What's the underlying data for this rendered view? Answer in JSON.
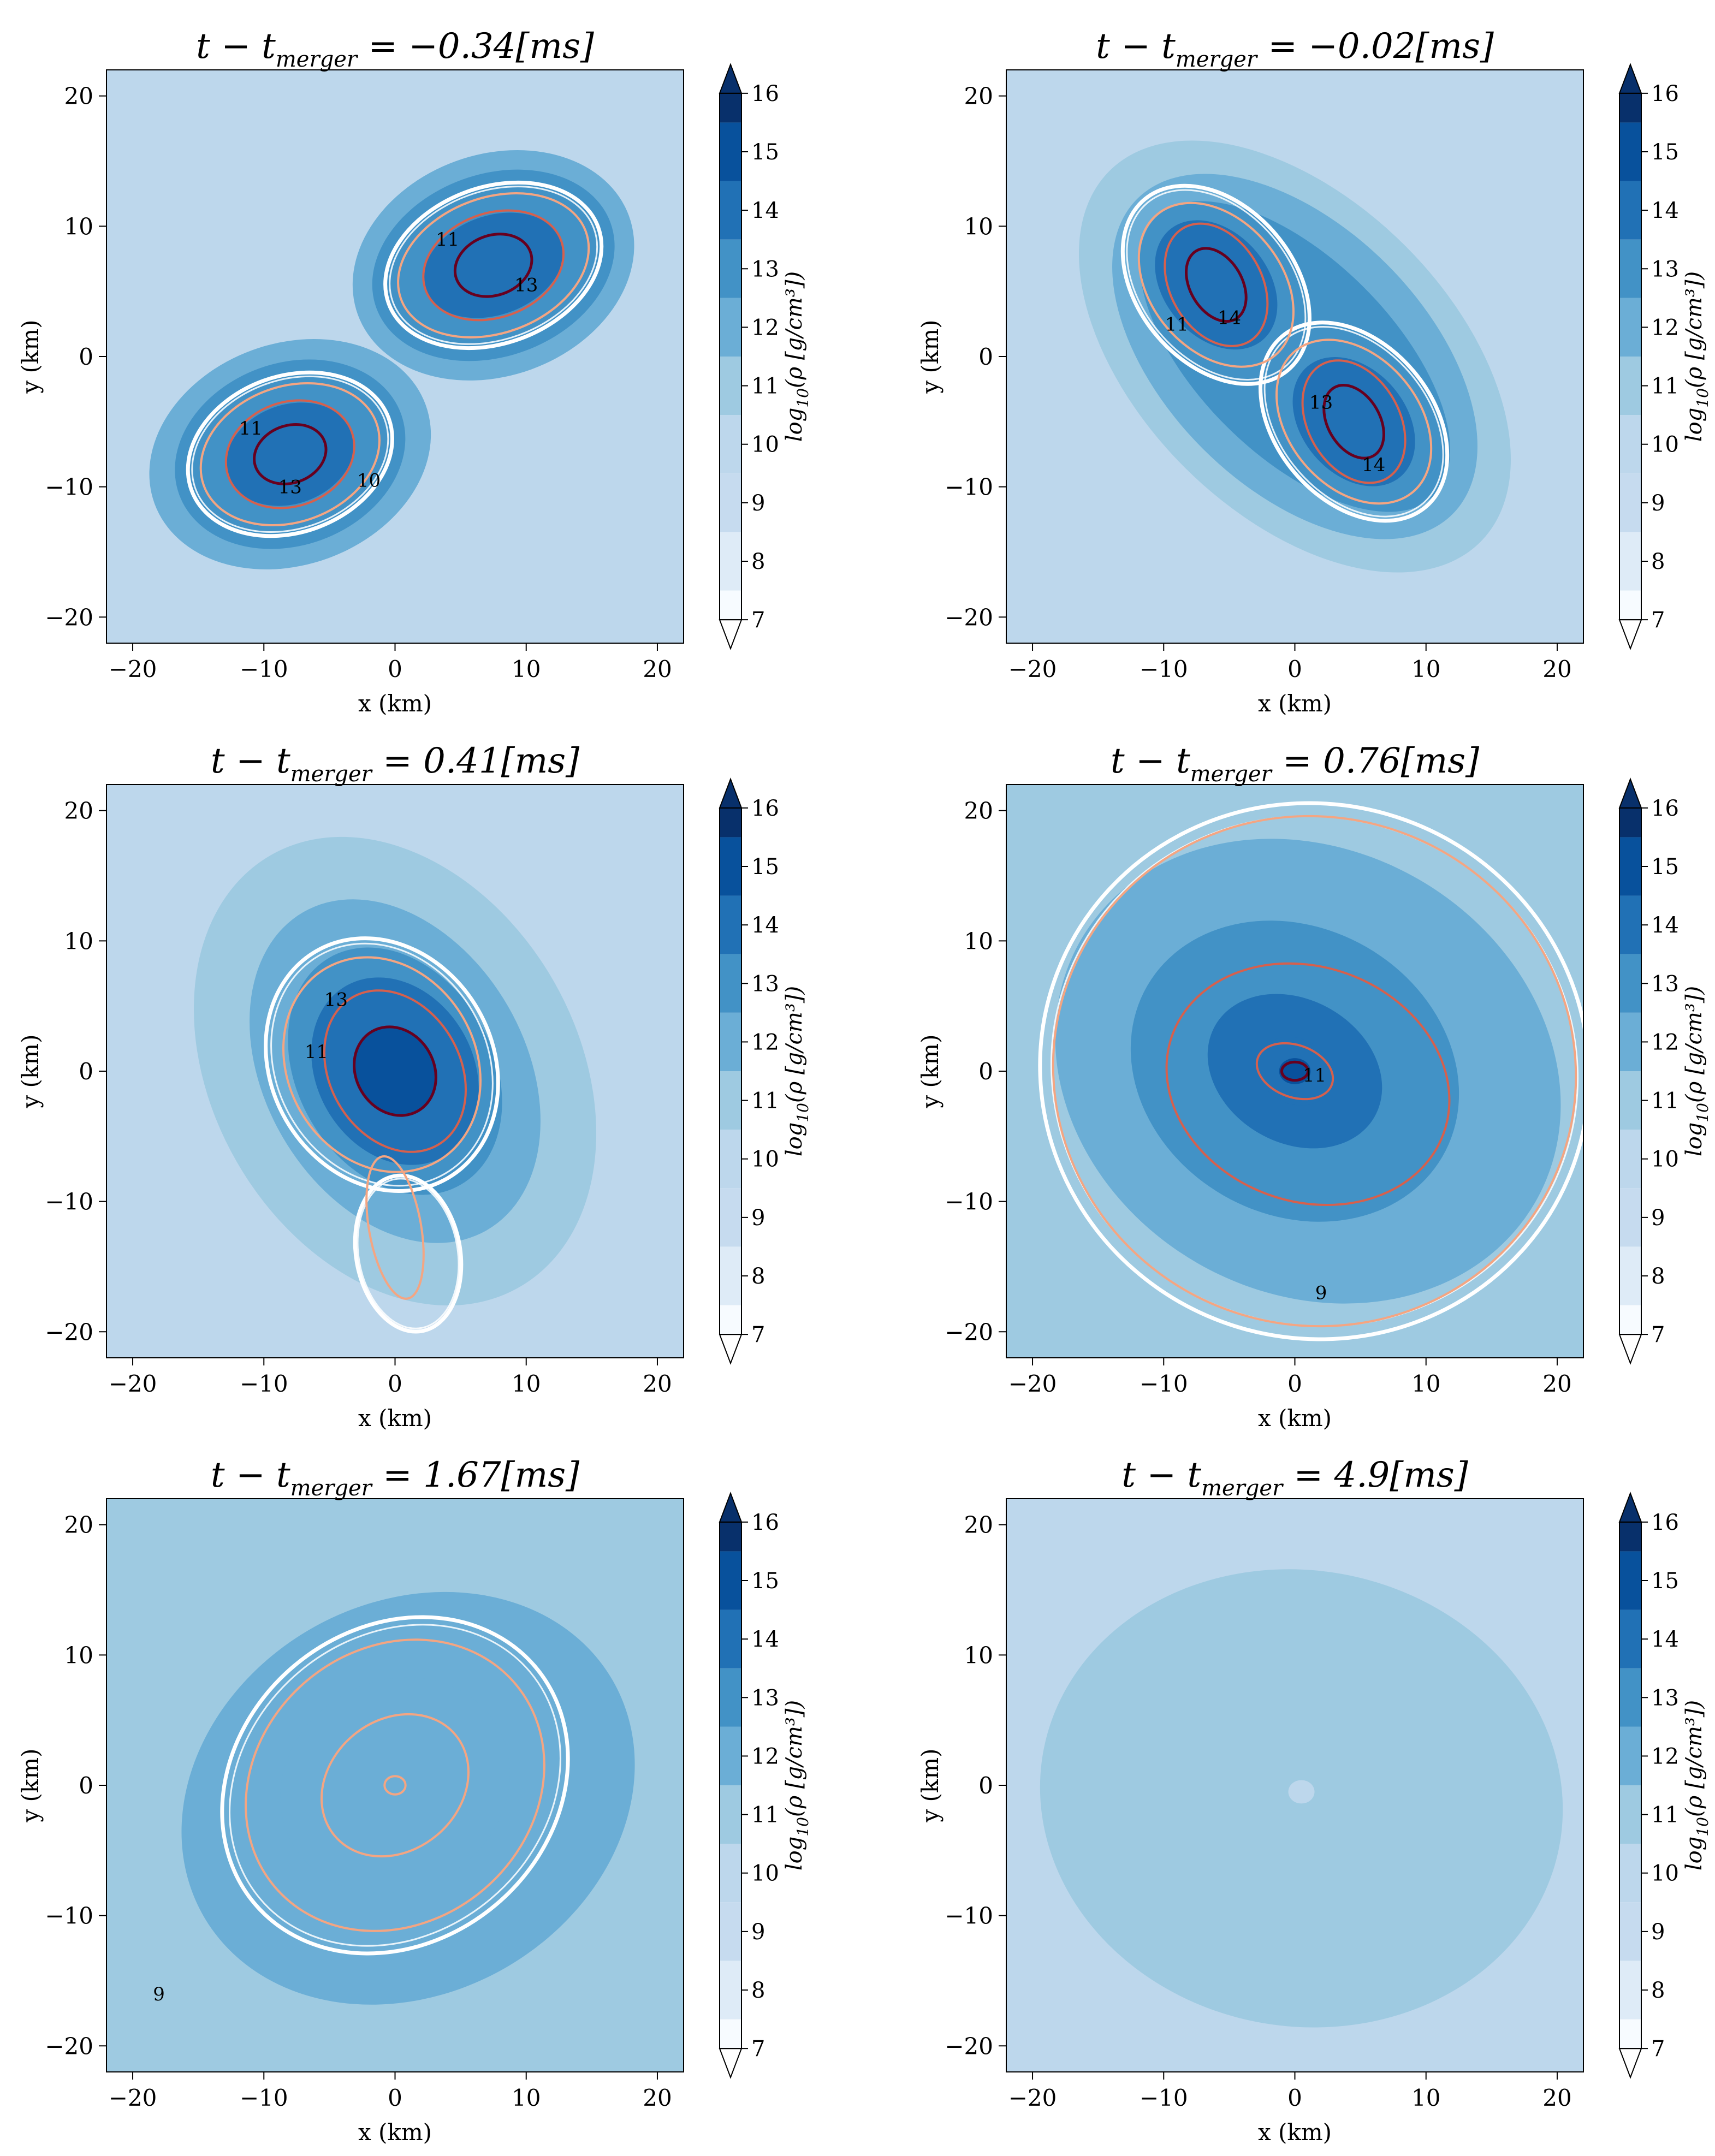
{
  "figure": {
    "colormap_levels": [
      {
        "from": 7,
        "to": 8,
        "color": "#f7fbff"
      },
      {
        "from": 8,
        "to": 9,
        "color": "#deebf7"
      },
      {
        "from": 9,
        "to": 10,
        "color": "#c6dbef"
      },
      {
        "from": 10,
        "to": 11,
        "color": "#bdd7ec"
      },
      {
        "from": 11,
        "to": 12,
        "color": "#9ecae1"
      },
      {
        "from": 12,
        "to": 13,
        "color": "#6baed6"
      },
      {
        "from": 13,
        "to": 14,
        "color": "#4292c6"
      },
      {
        "from": 14,
        "to": 15,
        "color": "#2171b5"
      },
      {
        "from": 15,
        "to": 16,
        "color": "#08519c"
      },
      {
        "from": 16,
        "to": 16.5,
        "color": "#08306b"
      }
    ],
    "contour_colors": {
      "outer": "#ffffff",
      "mid": "#f4a582",
      "inner": "#d6604d",
      "core": "#67001f"
    }
  },
  "chart_data": [
    {
      "type": "heatmap",
      "title_prefix": "t − t",
      "title_sub": "merger",
      "title_suffix": " = −0.34[ms]",
      "t_minus_t_merger_ms": -0.34,
      "xlabel": "x (km)",
      "ylabel": "y (km)",
      "xlim": [
        -22,
        22
      ],
      "ylim": [
        -22,
        22
      ],
      "xticks": [
        -20,
        -10,
        0,
        10,
        20
      ],
      "yticks": [
        -20,
        -10,
        0,
        10,
        20
      ],
      "xtick_labels": [
        "−20",
        "−10",
        "0",
        "10",
        "20"
      ],
      "ytick_labels": [
        "−20",
        "−10",
        "0",
        "10",
        "20"
      ],
      "colorbar": {
        "label": "log10(ρ [g/cm³])",
        "label_main": "log",
        "label_sub": "10",
        "label_rest": "(ρ [g/cm³])",
        "ticks": [
          7,
          8,
          9,
          10,
          11,
          12,
          13,
          14,
          15,
          16
        ]
      },
      "background_level": 10.5,
      "blobs": [
        {
          "cx": 7.5,
          "cy": 7.0,
          "rx": 11.0,
          "ry": 8.5,
          "rot": 20,
          "level": 12.5
        },
        {
          "cx": 7.5,
          "cy": 7.0,
          "rx": 9.5,
          "ry": 7.0,
          "rot": 20,
          "level": 13.5
        },
        {
          "cx": 7.5,
          "cy": 7.0,
          "rx": 5.5,
          "ry": 3.8,
          "rot": 20,
          "level": 14.5
        },
        {
          "cx": -8.0,
          "cy": -7.5,
          "rx": 11.0,
          "ry": 8.5,
          "rot": 20,
          "level": 12.5
        },
        {
          "cx": -8.0,
          "cy": -7.5,
          "rx": 9.0,
          "ry": 7.0,
          "rot": 20,
          "level": 13.5
        },
        {
          "cx": -8.0,
          "cy": -7.5,
          "rx": 5.0,
          "ry": 3.8,
          "rot": 20,
          "level": 14.5
        }
      ],
      "contours": [
        {
          "cx": 7.5,
          "cy": 7.0,
          "rx": 8.5,
          "ry": 6.0,
          "rot": 20,
          "color": "outer"
        },
        {
          "cx": 7.5,
          "cy": 7.0,
          "rx": 7.5,
          "ry": 5.2,
          "rot": 20,
          "color": "mid"
        },
        {
          "cx": 7.5,
          "cy": 7.0,
          "rx": 5.5,
          "ry": 4.0,
          "rot": 20,
          "color": "inner"
        },
        {
          "cx": 7.5,
          "cy": 7.0,
          "rx": 3.0,
          "ry": 2.3,
          "rot": 20,
          "color": "core"
        },
        {
          "cx": -8.0,
          "cy": -7.5,
          "rx": 8.0,
          "ry": 6.0,
          "rot": 20,
          "color": "outer"
        },
        {
          "cx": -8.0,
          "cy": -7.5,
          "rx": 7.0,
          "ry": 5.2,
          "rot": 20,
          "color": "mid"
        },
        {
          "cx": -8.0,
          "cy": -7.5,
          "rx": 5.0,
          "ry": 4.0,
          "rot": 20,
          "color": "inner"
        },
        {
          "cx": -8.0,
          "cy": -7.5,
          "rx": 2.8,
          "ry": 2.2,
          "rot": 20,
          "color": "core"
        }
      ],
      "contour_labels": [
        {
          "x": 10.0,
          "y": 5.0,
          "text": "13"
        },
        {
          "x": 4.0,
          "y": 8.5,
          "text": "11"
        },
        {
          "x": -11.0,
          "y": -6.0,
          "text": "11"
        },
        {
          "x": -8.0,
          "y": -10.5,
          "text": "13"
        },
        {
          "x": -2.0,
          "y": -10.0,
          "text": "10"
        }
      ]
    },
    {
      "type": "heatmap",
      "title_prefix": "t − t",
      "title_sub": "merger",
      "title_suffix": " = −0.02[ms]",
      "t_minus_t_merger_ms": -0.02,
      "xlabel": "x (km)",
      "ylabel": "y (km)",
      "xlim": [
        -22,
        22
      ],
      "ylim": [
        -22,
        22
      ],
      "xticks": [
        -20,
        -10,
        0,
        10,
        20
      ],
      "yticks": [
        -20,
        -10,
        0,
        10,
        20
      ],
      "xtick_labels": [
        "−20",
        "−10",
        "0",
        "10",
        "20"
      ],
      "ytick_labels": [
        "−20",
        "−10",
        "0",
        "10",
        "20"
      ],
      "colorbar": {
        "label": "log10(ρ [g/cm³])",
        "label_main": "log",
        "label_sub": "10",
        "label_rest": "(ρ [g/cm³])",
        "ticks": [
          7,
          8,
          9,
          10,
          11,
          12,
          13,
          14,
          15,
          16
        ]
      },
      "background_level": 10.5,
      "blobs": [
        {
          "cx": 0.0,
          "cy": 0.0,
          "rx": 20.0,
          "ry": 12.0,
          "rot": -45,
          "level": 11.5
        },
        {
          "cx": 0.0,
          "cy": 0.0,
          "rx": 17.0,
          "ry": 10.0,
          "rot": -45,
          "level": 12.5
        },
        {
          "cx": 0.0,
          "cy": 0.0,
          "rx": 15.0,
          "ry": 7.5,
          "rot": -45,
          "level": 13.5
        },
        {
          "cx": -6.0,
          "cy": 5.5,
          "rx": 5.5,
          "ry": 4.0,
          "rot": -50,
          "level": 14.5
        },
        {
          "cx": 4.5,
          "cy": -5.0,
          "rx": 5.5,
          "ry": 4.0,
          "rot": -50,
          "level": 14.5
        }
      ],
      "contours": [
        {
          "cx": -6.0,
          "cy": 5.5,
          "rx": 8.5,
          "ry": 6.0,
          "rot": -50,
          "color": "outer"
        },
        {
          "cx": 4.5,
          "cy": -5.0,
          "rx": 8.5,
          "ry": 6.0,
          "rot": -50,
          "color": "outer"
        },
        {
          "cx": -6.0,
          "cy": 5.5,
          "rx": 7.0,
          "ry": 5.0,
          "rot": -50,
          "color": "mid"
        },
        {
          "cx": 4.5,
          "cy": -5.0,
          "rx": 7.0,
          "ry": 5.0,
          "rot": -50,
          "color": "mid"
        },
        {
          "cx": -6.0,
          "cy": 5.5,
          "rx": 5.0,
          "ry": 3.5,
          "rot": -60,
          "color": "inner"
        },
        {
          "cx": 4.5,
          "cy": -5.0,
          "rx": 5.0,
          "ry": 3.5,
          "rot": -60,
          "color": "inner"
        },
        {
          "cx": -6.0,
          "cy": 5.5,
          "rx": 3.0,
          "ry": 2.0,
          "rot": -60,
          "color": "core"
        },
        {
          "cx": 4.5,
          "cy": -5.0,
          "rx": 3.0,
          "ry": 2.0,
          "rot": -60,
          "color": "core"
        }
      ],
      "contour_labels": [
        {
          "x": -5.0,
          "y": 2.5,
          "text": "14"
        },
        {
          "x": 6.0,
          "y": -8.8,
          "text": "14"
        },
        {
          "x": -9.0,
          "y": 2.0,
          "text": "11"
        },
        {
          "x": 2.0,
          "y": -4.0,
          "text": "13"
        }
      ]
    },
    {
      "type": "heatmap",
      "title_prefix": "t − t",
      "title_sub": "merger",
      "title_suffix": " = 0.41[ms]",
      "t_minus_t_merger_ms": 0.41,
      "xlabel": "x (km)",
      "ylabel": "y (km)",
      "xlim": [
        -22,
        22
      ],
      "ylim": [
        -22,
        22
      ],
      "xticks": [
        -20,
        -10,
        0,
        10,
        20
      ],
      "yticks": [
        -20,
        -10,
        0,
        10,
        20
      ],
      "xtick_labels": [
        "−20",
        "−10",
        "0",
        "10",
        "20"
      ],
      "ytick_labels": [
        "−20",
        "−10",
        "0",
        "10",
        "20"
      ],
      "colorbar": {
        "label": "log10(ρ [g/cm³])",
        "label_main": "log",
        "label_sub": "10",
        "label_rest": "(ρ [g/cm³])",
        "ticks": [
          7,
          8,
          9,
          10,
          11,
          12,
          13,
          14,
          15,
          16
        ]
      },
      "background_level": 10.5,
      "blobs": [
        {
          "cx": 0.0,
          "cy": 0.0,
          "rx": 19.0,
          "ry": 14.0,
          "rot": -60,
          "level": 11.5
        },
        {
          "cx": 0.0,
          "cy": 0.0,
          "rx": 14.0,
          "ry": 10.0,
          "rot": -60,
          "level": 12.5
        },
        {
          "cx": 0.0,
          "cy": 0.0,
          "rx": 10.0,
          "ry": 7.5,
          "rot": -60,
          "level": 13.5
        },
        {
          "cx": 0.0,
          "cy": 0.0,
          "rx": 7.5,
          "ry": 6.0,
          "rot": -60,
          "level": 14.5
        },
        {
          "cx": 0.0,
          "cy": 0.0,
          "rx": 3.5,
          "ry": 3.0,
          "rot": -60,
          "level": 15.2
        }
      ],
      "contours": [
        {
          "cx": -1.0,
          "cy": 0.5,
          "rx": 10.0,
          "ry": 8.5,
          "rot": -60,
          "color": "outer"
        },
        {
          "cx": 1.0,
          "cy": -14.0,
          "rx": 6.0,
          "ry": 4.0,
          "rot": -80,
          "color": "outer"
        },
        {
          "cx": -1.0,
          "cy": 0.5,
          "rx": 8.5,
          "ry": 7.2,
          "rot": -60,
          "color": "mid"
        },
        {
          "cx": 0.0,
          "cy": -12.0,
          "rx": 5.5,
          "ry": 2.0,
          "rot": -80,
          "color": "mid"
        },
        {
          "cx": 0.0,
          "cy": 0.0,
          "rx": 6.5,
          "ry": 5.0,
          "rot": -60,
          "color": "inner"
        },
        {
          "cx": 0.0,
          "cy": 0.0,
          "rx": 3.5,
          "ry": 3.0,
          "rot": -60,
          "color": "core"
        }
      ],
      "contour_labels": [
        {
          "x": -6.0,
          "y": 1.0,
          "text": "11"
        },
        {
          "x": -4.5,
          "y": 5.0,
          "text": "13"
        }
      ]
    },
    {
      "type": "heatmap",
      "title_prefix": "t − t",
      "title_sub": "merger",
      "title_suffix": " = 0.76[ms]",
      "t_minus_t_merger_ms": 0.76,
      "xlabel": "x (km)",
      "ylabel": "y (km)",
      "xlim": [
        -22,
        22
      ],
      "ylim": [
        -22,
        22
      ],
      "xticks": [
        -20,
        -10,
        0,
        10,
        20
      ],
      "yticks": [
        -20,
        -10,
        0,
        10,
        20
      ],
      "xtick_labels": [
        "−20",
        "−10",
        "0",
        "10",
        "20"
      ],
      "ytick_labels": [
        "−20",
        "−10",
        "0",
        "10",
        "20"
      ],
      "colorbar": {
        "label": "log10(ρ [g/cm³])",
        "label_main": "log",
        "label_sub": "10",
        "label_rest": "(ρ [g/cm³])",
        "ticks": [
          7,
          8,
          9,
          10,
          11,
          12,
          13,
          14,
          15,
          16
        ]
      },
      "background_level": 11.5,
      "blobs": [
        {
          "cx": 1.0,
          "cy": 0.0,
          "rx": 20.0,
          "ry": 17.0,
          "rot": -30,
          "level": 12.5
        },
        {
          "cx": 0.0,
          "cy": 0.0,
          "rx": 13.0,
          "ry": 11.0,
          "rot": -30,
          "level": 13.2
        },
        {
          "cx": 0.0,
          "cy": 0.0,
          "rx": 7.0,
          "ry": 5.5,
          "rot": -30,
          "level": 14.0
        },
        {
          "cx": 0.0,
          "cy": 0.0,
          "rx": 3.0,
          "ry": 2.5,
          "rot": -30,
          "level": 14.8
        },
        {
          "cx": 0.0,
          "cy": 0.0,
          "rx": 1.2,
          "ry": 1.0,
          "rot": 0,
          "level": 15.5
        }
      ],
      "contours": [
        {
          "cx": 1.5,
          "cy": 0.0,
          "rx": 21.0,
          "ry": 20.5,
          "rot": -20,
          "color": "outer"
        },
        {
          "cx": 1.5,
          "cy": 0.0,
          "rx": 20.0,
          "ry": 19.5,
          "rot": -20,
          "color": "mid"
        },
        {
          "cx": 1.0,
          "cy": -1.0,
          "rx": 11.0,
          "ry": 9.0,
          "rot": -20,
          "color": "inner"
        },
        {
          "cx": 0.0,
          "cy": 0.0,
          "rx": 3.0,
          "ry": 2.0,
          "rot": -20,
          "color": "inner"
        },
        {
          "cx": 0.0,
          "cy": 0.0,
          "rx": 1.0,
          "ry": 0.7,
          "rot": 0,
          "color": "core"
        }
      ],
      "contour_labels": [
        {
          "x": 2.0,
          "y": -17.5,
          "text": "9"
        },
        {
          "x": 1.5,
          "y": -0.8,
          "text": "11"
        }
      ]
    },
    {
      "type": "heatmap",
      "title_prefix": "t − t",
      "title_sub": "merger",
      "title_suffix": " = 1.67[ms]",
      "t_minus_t_merger_ms": 1.67,
      "xlabel": "x (km)",
      "ylabel": "y (km)",
      "xlim": [
        -22,
        22
      ],
      "ylim": [
        -22,
        22
      ],
      "xticks": [
        -20,
        -10,
        0,
        10,
        20
      ],
      "yticks": [
        -20,
        -10,
        0,
        10,
        20
      ],
      "xtick_labels": [
        "−20",
        "−10",
        "0",
        "10",
        "20"
      ],
      "ytick_labels": [
        "−20",
        "−10",
        "0",
        "10",
        "20"
      ],
      "colorbar": {
        "label": "log10(ρ [g/cm³])",
        "label_main": "log",
        "label_sub": "10",
        "label_rest": "(ρ [g/cm³])",
        "ticks": [
          7,
          8,
          9,
          10,
          11,
          12,
          13,
          14,
          15,
          16
        ]
      },
      "background_level": 11.5,
      "blobs": [
        {
          "cx": 1.0,
          "cy": -1.0,
          "rx": 18.0,
          "ry": 15.0,
          "rot": 30,
          "level": 12.3
        },
        {
          "cx": 0.0,
          "cy": 0.0,
          "rx": 9.0,
          "ry": 8.0,
          "rot": 30,
          "level": 12.7
        }
      ],
      "contours": [
        {
          "cx": 0.0,
          "cy": 0.0,
          "rx": 14.0,
          "ry": 12.0,
          "rot": 40,
          "color": "outer"
        },
        {
          "cx": 0.0,
          "cy": 0.0,
          "rx": 12.0,
          "ry": 10.5,
          "rot": 40,
          "color": "mid"
        },
        {
          "cx": 0.0,
          "cy": 0.0,
          "rx": 6.0,
          "ry": 5.0,
          "rot": 40,
          "color": "mid"
        },
        {
          "cx": 0.0,
          "cy": 0.0,
          "rx": 0.8,
          "ry": 0.7,
          "rot": 0,
          "color": "mid"
        }
      ],
      "contour_labels": [
        {
          "x": -18.0,
          "y": -16.5,
          "text": "9"
        }
      ]
    },
    {
      "type": "heatmap",
      "title_prefix": "t − t",
      "title_sub": "merger",
      "title_suffix": " = 4.9[ms]",
      "t_minus_t_merger_ms": 4.9,
      "xlabel": "x (km)",
      "ylabel": "y (km)",
      "xlim": [
        -22,
        22
      ],
      "ylim": [
        -22,
        22
      ],
      "xticks": [
        -20,
        -10,
        0,
        10,
        20
      ],
      "yticks": [
        -20,
        -10,
        0,
        10,
        20
      ],
      "xtick_labels": [
        "−20",
        "−10",
        "0",
        "10",
        "20"
      ],
      "ytick_labels": [
        "−20",
        "−10",
        "0",
        "10",
        "20"
      ],
      "colorbar": {
        "label": "log10(ρ [g/cm³])",
        "label_main": "log",
        "label_sub": "10",
        "label_rest": "(ρ [g/cm³])",
        "ticks": [
          7,
          8,
          9,
          10,
          11,
          12,
          13,
          14,
          15,
          16
        ]
      },
      "background_level": 10.5,
      "blobs": [
        {
          "cx": 0.5,
          "cy": -1.0,
          "rx": 20.0,
          "ry": 17.5,
          "rot": -10,
          "level": 11.5
        },
        {
          "cx": 0.5,
          "cy": -0.5,
          "rx": 1.0,
          "ry": 0.9,
          "rot": 0,
          "level": 10.2
        }
      ],
      "contours": [],
      "contour_labels": []
    }
  ]
}
